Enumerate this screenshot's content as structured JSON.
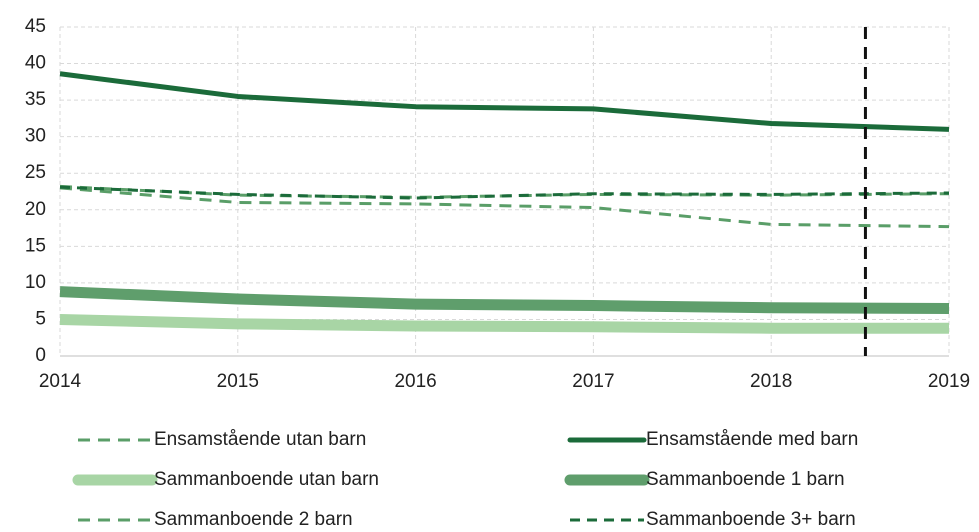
{
  "chart_data": {
    "type": "line",
    "x": [
      2014,
      2015,
      2016,
      2017,
      2018,
      2019
    ],
    "xlim": [
      2014,
      2019
    ],
    "xticks": [
      2014,
      2015,
      2016,
      2017,
      2018,
      2019
    ],
    "ylim": [
      0,
      45
    ],
    "yticks": [
      0,
      5,
      10,
      15,
      20,
      25,
      30,
      35,
      40,
      45
    ],
    "grid": true,
    "vline": {
      "x": 2018.53,
      "color": "#111111"
    },
    "series": [
      {
        "name": "Ensamstående utan barn",
        "color": "#5a9e68",
        "values": [
          23.0,
          21.0,
          20.8,
          20.3,
          18.0,
          17.7
        ]
      },
      {
        "name": "Ensamstående med barn",
        "color": "#1b6b3a",
        "values": [
          38.6,
          35.5,
          34.1,
          33.8,
          31.8,
          31.0
        ]
      },
      {
        "name": "Sammanboende utan barn",
        "color": "#a8d5a5",
        "values": [
          5.0,
          4.4,
          4.1,
          4.0,
          3.8,
          3.8
        ]
      },
      {
        "name": "Sammanboende 1 barn",
        "color": "#5f9e6c",
        "values": [
          8.8,
          7.8,
          7.1,
          6.9,
          6.6,
          6.5
        ]
      },
      {
        "name": "Sammanboende 2 barn",
        "color": "#5a9e68",
        "values": [
          23.2,
          22.0,
          21.7,
          22.1,
          22.0,
          22.2
        ]
      },
      {
        "name": "Sammanboende 3+ barn",
        "color": "#1b6b3a",
        "values": [
          23.1,
          22.1,
          21.6,
          22.2,
          22.1,
          22.3
        ]
      }
    ]
  }
}
